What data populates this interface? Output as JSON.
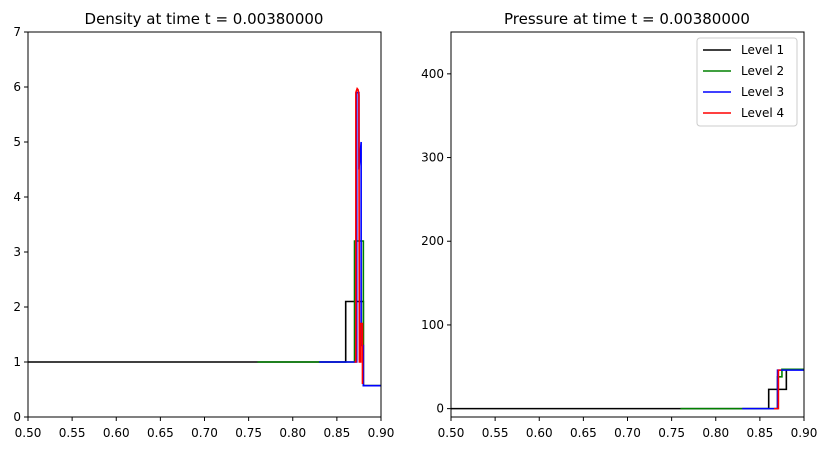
{
  "chart_data": [
    {
      "type": "line",
      "title": "Density at time t =      0.00380000",
      "xlabel": "",
      "ylabel": "",
      "xlim": [
        0.5,
        0.9
      ],
      "ylim": [
        0,
        7
      ],
      "x_ticks": [
        0.5,
        0.55,
        0.6,
        0.65,
        0.7,
        0.75,
        0.8,
        0.85,
        0.9
      ],
      "x_tick_labels": [
        "0.50",
        "0.55",
        "0.60",
        "0.65",
        "0.70",
        "0.75",
        "0.80",
        "0.85",
        "0.90"
      ],
      "y_ticks": [
        0,
        1,
        2,
        3,
        4,
        5,
        6,
        7
      ],
      "y_tick_labels": [
        "0",
        "1",
        "2",
        "3",
        "4",
        "5",
        "6",
        "7"
      ],
      "grid": false,
      "legend": false,
      "series": [
        {
          "name": "Level 1",
          "color": "#000000",
          "x": [
            0.5,
            0.86,
            0.86,
            0.88,
            0.88,
            0.9
          ],
          "y": [
            1,
            1,
            2.1,
            2.1,
            0.57,
            0.57
          ]
        },
        {
          "name": "Level 2",
          "color": "#008000",
          "x": [
            0.76,
            0.87,
            0.87,
            0.88,
            0.88,
            0.9
          ],
          "y": [
            1,
            1,
            3.2,
            3.2,
            0.57,
            0.57
          ]
        },
        {
          "name": "Level 3",
          "color": "#0000ff",
          "x": [
            0.83,
            0.8725,
            0.8725,
            0.875,
            0.875,
            0.8775,
            0.8775,
            0.88,
            0.88,
            0.9
          ],
          "y": [
            1,
            1,
            5.9,
            5.9,
            4.5,
            5.0,
            1.3,
            1.3,
            0.57,
            0.57
          ]
        },
        {
          "name": "Level 4",
          "color": "#ff0000",
          "x": [
            0.87,
            0.8715,
            0.8715,
            0.873,
            0.874,
            0.875,
            0.8755,
            0.8755,
            0.877,
            0.877,
            0.879,
            0.879
          ],
          "y": [
            1,
            1,
            5.9,
            5.97,
            5.95,
            5.85,
            1.1,
            1.0,
            1.0,
            1.7,
            1.7,
            0.6
          ]
        }
      ]
    },
    {
      "type": "line",
      "title": "Pressure at time t =      0.00380000",
      "xlabel": "",
      "ylabel": "",
      "xlim": [
        0.5,
        0.9
      ],
      "ylim": [
        -10,
        450
      ],
      "x_ticks": [
        0.5,
        0.55,
        0.6,
        0.65,
        0.7,
        0.75,
        0.8,
        0.85,
        0.9
      ],
      "x_tick_labels": [
        "0.50",
        "0.55",
        "0.60",
        "0.65",
        "0.70",
        "0.75",
        "0.80",
        "0.85",
        "0.90"
      ],
      "y_ticks": [
        0,
        100,
        200,
        300,
        400
      ],
      "y_tick_labels": [
        "0",
        "100",
        "200",
        "300",
        "400"
      ],
      "grid": false,
      "legend": "top-right",
      "series": [
        {
          "name": "Level 1",
          "color": "#000000",
          "x": [
            0.5,
            0.86,
            0.86,
            0.87,
            0.87,
            0.88,
            0.88,
            0.9
          ],
          "y": [
            0,
            0,
            23,
            23,
            23,
            23,
            47,
            47
          ]
        },
        {
          "name": "Level 2",
          "color": "#008000",
          "x": [
            0.76,
            0.865,
            0.865,
            0.87,
            0.87,
            0.875,
            0.875,
            0.9
          ],
          "y": [
            0,
            0,
            0,
            0,
            38,
            38,
            47,
            47
          ]
        },
        {
          "name": "Level 3",
          "color": "#0000ff",
          "x": [
            0.83,
            0.867,
            0.867,
            0.87,
            0.87,
            0.9
          ],
          "y": [
            0,
            0,
            0,
            0,
            46,
            46
          ]
        },
        {
          "name": "Level 4",
          "color": "#ff0000",
          "x": [
            0.866,
            0.8685,
            0.8685,
            0.871,
            0.871,
            0.874
          ],
          "y": [
            0,
            0,
            0,
            0,
            46,
            46
          ]
        }
      ]
    }
  ]
}
